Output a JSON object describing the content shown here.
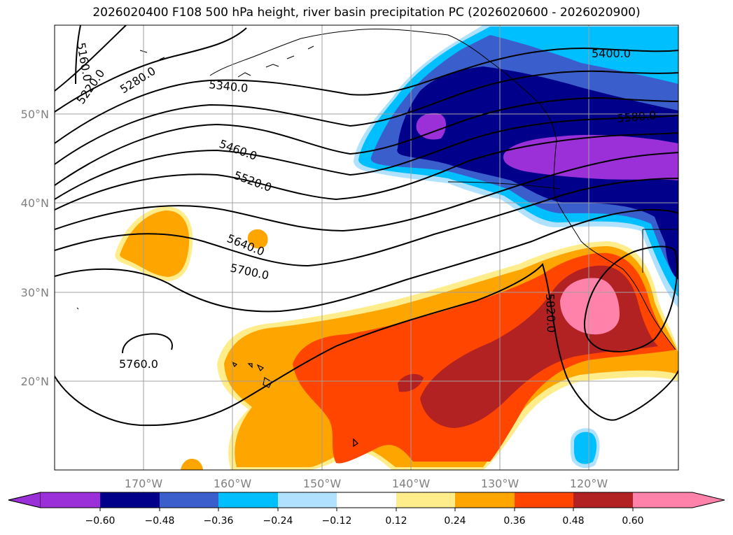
{
  "title": "2026020400 F108 500 hPa height, river basin precipitation PC (2026020600 - 2026020900)",
  "lat_labels": [
    "50°N",
    "40°N",
    "30°N",
    "20°N"
  ],
  "lon_labels": [
    "170°W",
    "160°W",
    "150°W",
    "140°W",
    "130°W",
    "120°W"
  ],
  "contour_labels": [
    "5160.0",
    "5220.0",
    "5280.0",
    "5340.0",
    "5400.0",
    "5460.0",
    "5520.0",
    "5580.0",
    "5640.0",
    "5700.0",
    "5760.0",
    "5820.0"
  ],
  "colorbar": {
    "ticks": [
      "−0.60",
      "−0.48",
      "−0.36",
      "−0.24",
      "−0.12",
      "0.12",
      "0.24",
      "0.36",
      "0.48",
      "0.60"
    ],
    "colors": [
      "#9b30d9",
      "#00008b",
      "#3a5fcd",
      "#00bfff",
      "#b0e2ff",
      "#ffffff",
      "#ffec8b",
      "#ffa500",
      "#ff4500",
      "#b22222",
      "#ff82ab"
    ]
  },
  "colors": {
    "strong_neg": "#9b30d9",
    "neg_48": "#00008b",
    "neg_36": "#3a5fcd",
    "neg_24": "#00bfff",
    "neg_12": "#b0e2ff",
    "pos_12": "#ffec8b",
    "pos_24": "#ffa500",
    "pos_36": "#ff4500",
    "pos_48": "#b22222",
    "pos_60": "#ff82ab"
  }
}
